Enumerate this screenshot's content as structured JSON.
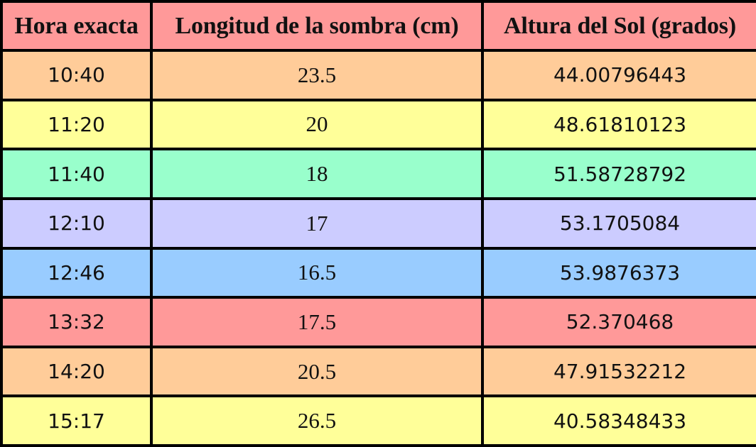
{
  "headers": [
    "Hora exacta",
    "Longitud de la sombra (cm)",
    "Altura del Sol (grados)"
  ],
  "header_color": "#ff9999",
  "rows": [
    {
      "time": "10:40",
      "length": "23.5",
      "angle": "44.00796443",
      "color": "#ffcc99"
    },
    {
      "time": "11:20",
      "length": "20",
      "angle": "48.61810123",
      "color": "#ffff99"
    },
    {
      "time": "11:40",
      "length": "18",
      "angle": "51.58728792",
      "color": "#99ffcc"
    },
    {
      "time": "12:10",
      "length": "17",
      "angle": "53.1705084",
      "color": "#ccccff"
    },
    {
      "time": "12:46",
      "length": "16.5",
      "angle": "53.9876373",
      "color": "#99ccff"
    },
    {
      "time": "13:32",
      "length": "17.5",
      "angle": "52.370468",
      "color": "#ff9999"
    },
    {
      "time": "14:20",
      "length": "20.5",
      "angle": "47.91532212",
      "color": "#ffcc99"
    },
    {
      "time": "15:17",
      "length": "26.5",
      "angle": "40.58348433",
      "color": "#ffff99"
    }
  ]
}
